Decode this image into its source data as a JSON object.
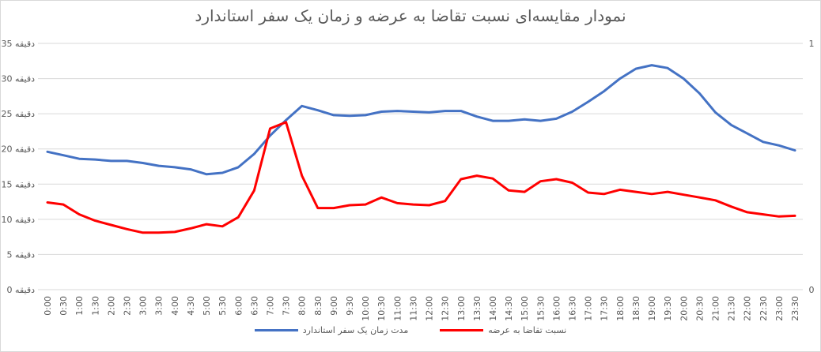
{
  "chart_data": {
    "type": "line",
    "title": "نمودار مقایسه‌ای نسبت تقاضا به عرضه و زمان یک سفر استاندارد",
    "xlabel": "",
    "ylabel": "",
    "y_unit_suffix": "دقیقه",
    "ylim": [
      0,
      35
    ],
    "y_ticks": [
      0,
      5,
      10,
      15,
      20,
      25,
      30,
      35
    ],
    "y2lim": [
      0,
      1
    ],
    "y2_ticks": [
      0,
      1
    ],
    "grid": true,
    "legend_position": "bottom",
    "categories": [
      "0:00",
      "0:30",
      "1:00",
      "1:30",
      "2:00",
      "2:30",
      "3:00",
      "3:30",
      "4:00",
      "4:30",
      "5:00",
      "5:30",
      "6:00",
      "6:30",
      "7:00",
      "7:30",
      "8:00",
      "8:30",
      "9:00",
      "9:30",
      "10:00",
      "10:30",
      "11:00",
      "11:30",
      "12:00",
      "12:30",
      "13:00",
      "13:30",
      "14:00",
      "14:30",
      "15:00",
      "15:30",
      "16:00",
      "16:30",
      "17:00",
      "17:30",
      "18:00",
      "18:30",
      "19:00",
      "19:30",
      "20:00",
      "20:30",
      "21:00",
      "21:30",
      "22:00",
      "22:30",
      "23:00",
      "23:30"
    ],
    "series": [
      {
        "name": "مدت زمان یک سفر استاندارد",
        "color": "#4472C4",
        "values": [
          19.6,
          19.1,
          18.6,
          18.5,
          18.3,
          18.3,
          18.0,
          17.6,
          17.4,
          17.1,
          16.4,
          16.6,
          17.4,
          19.3,
          21.9,
          24.1,
          26.1,
          25.5,
          24.8,
          24.7,
          24.8,
          25.3,
          25.4,
          25.3,
          25.2,
          25.4,
          25.4,
          24.6,
          24.0,
          24.0,
          24.2,
          24.0,
          24.3,
          25.3,
          26.7,
          28.2,
          30.0,
          31.4,
          31.9,
          31.5,
          30.0,
          27.9,
          25.2,
          23.4,
          22.2,
          21.0,
          20.5,
          19.8
        ]
      },
      {
        "name": "نسبت تقاضا به عرضه",
        "color": "#FF0000",
        "values": [
          12.4,
          12.1,
          10.7,
          9.8,
          9.2,
          8.6,
          8.1,
          8.1,
          8.2,
          8.7,
          9.3,
          9.0,
          10.3,
          14.1,
          22.9,
          23.8,
          16.2,
          11.6,
          11.6,
          12.0,
          12.1,
          13.1,
          12.3,
          12.1,
          12.0,
          12.6,
          15.7,
          16.2,
          15.8,
          14.1,
          13.9,
          15.4,
          15.7,
          15.2,
          13.8,
          13.6,
          14.2,
          13.9,
          13.6,
          13.9,
          13.5,
          13.1,
          12.7,
          11.8,
          11.0,
          10.7,
          10.4,
          10.5
        ]
      }
    ]
  },
  "legend": {
    "items": [
      {
        "label": "نسبت تقاضا به عرضه",
        "color": "#FF0000"
      },
      {
        "label": "مدت زمان یک سفر استاندارد",
        "color": "#4472C4"
      }
    ]
  }
}
